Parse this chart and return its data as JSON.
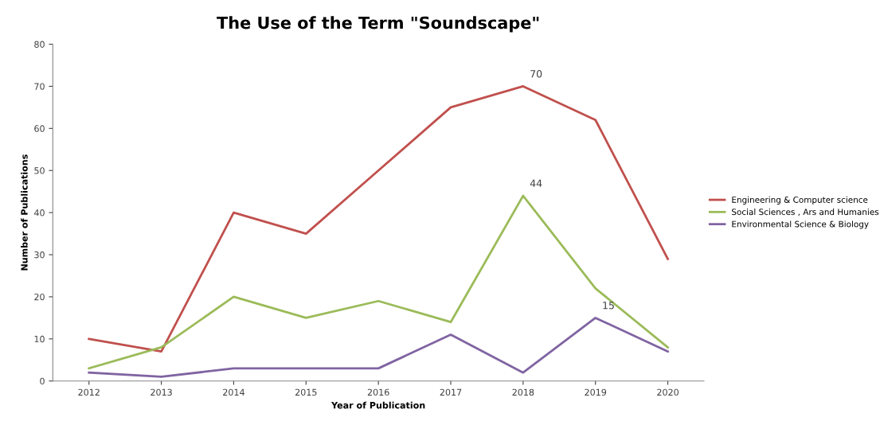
{
  "chart_data": {
    "type": "line",
    "title": "The Use of the Term \"Soundscape\"",
    "xlabel": "Year of Publication",
    "ylabel": "Number of Publications",
    "categories": [
      "2012",
      "2013",
      "2014",
      "2015",
      "2016",
      "2017",
      "2018",
      "2019",
      "2020"
    ],
    "ylim": [
      0,
      80
    ],
    "yticks": [
      0,
      10,
      20,
      30,
      40,
      50,
      60,
      70,
      80
    ],
    "grid": false,
    "legend": "right",
    "marker": "none",
    "series": [
      {
        "name": "Engineering & Computer science",
        "color": "#c0504d",
        "values": [
          10,
          7,
          40,
          35,
          50,
          65,
          70,
          62,
          29
        ],
        "value_labels": [
          null,
          null,
          null,
          null,
          null,
          null,
          "70",
          null,
          null
        ]
      },
      {
        "name": "Social Sciences , Ars and Humanies",
        "color": "#9bbb59",
        "values": [
          3,
          8,
          20,
          15,
          19,
          14,
          44,
          22,
          8
        ],
        "value_labels": [
          null,
          null,
          null,
          null,
          null,
          null,
          "44",
          null,
          null
        ]
      },
      {
        "name": "Environmental Science & Biology",
        "color": "#8064a2",
        "values": [
          2,
          1,
          3,
          3,
          3,
          11,
          2,
          15,
          7
        ],
        "value_labels": [
          null,
          null,
          null,
          null,
          null,
          null,
          null,
          "15",
          null
        ]
      }
    ]
  }
}
